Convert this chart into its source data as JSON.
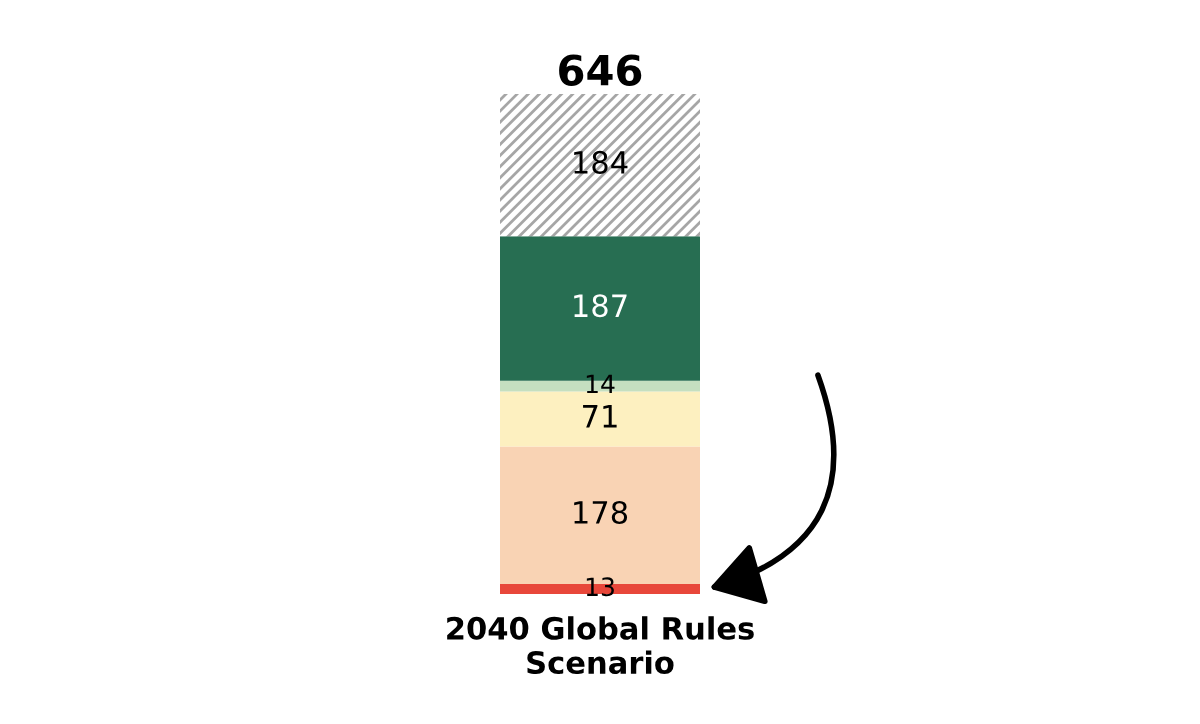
{
  "chart_data": {
    "type": "bar",
    "stacked": true,
    "categories": [
      "2040 Global Rules\nScenario"
    ],
    "series": [
      {
        "color": "#e8473a",
        "values": [
          13
        ]
      },
      {
        "color": "#f9d3b4",
        "values": [
          178
        ]
      },
      {
        "color": "#fdf0c0",
        "values": [
          71
        ]
      },
      {
        "color": "#c5dfc0",
        "values": [
          14
        ]
      },
      {
        "color": "#276e52",
        "values": [
          187
        ]
      },
      {
        "color": "#a6a6a6",
        "values": [
          184
        ]
      }
    ],
    "data_labels": true,
    "totals": [
      "646"
    ],
    "grid": false,
    "legend": false,
    "tick_labels": "x"
  }
}
